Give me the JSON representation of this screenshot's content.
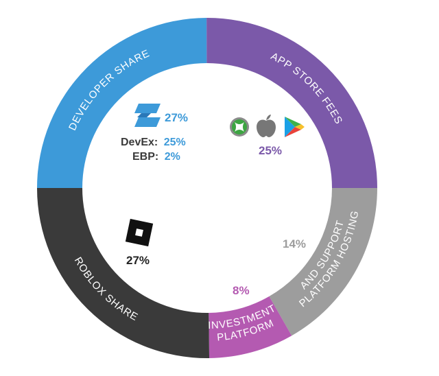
{
  "chart_data": {
    "type": "pie",
    "categories": [
      "Developer Share",
      "App Store Fees",
      "Platform Hosting and Support",
      "Platform Investment",
      "Roblox Share"
    ],
    "values": [
      27,
      25,
      14,
      8,
      27
    ],
    "colors": [
      "#3d9ad9",
      "#7b59a9",
      "#9d9d9d",
      "#b45ab1",
      "#3a3a3a"
    ],
    "segment_labels": {
      "developer": "DEVELOPER SHARE",
      "appstore": "APP STORE FEES",
      "hosting_1": "PLATFORM HOSTING",
      "hosting_2": "AND SUPPORT",
      "investment_1": "PLATFORM",
      "investment_2": "INVESTMENT",
      "roblox": "ROBLOX SHARE"
    },
    "inner_labels": {
      "developer_pct": "27%",
      "devex_label": "DevEx:",
      "devex_pct": "25%",
      "ebp_label": "EBP:",
      "ebp_pct": "2%",
      "appstore_pct": "25%",
      "hosting_pct": "14%",
      "investment_pct": "8%",
      "roblox_pct": "27%"
    }
  },
  "icons": [
    "roblox-studio-icon",
    "xbox-icon",
    "apple-icon",
    "google-play-icon",
    "roblox-logo-icon"
  ]
}
